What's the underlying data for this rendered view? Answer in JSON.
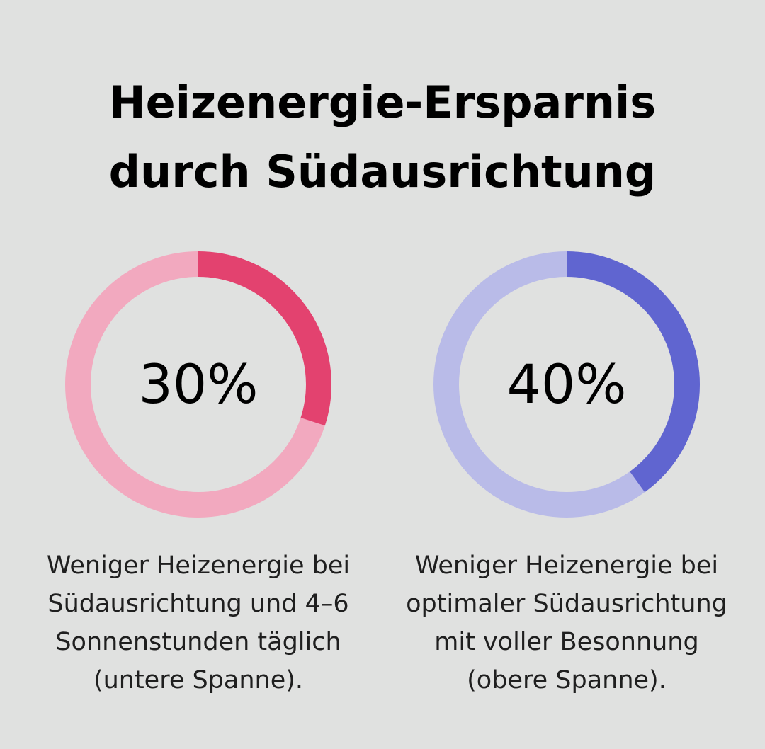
{
  "title": {
    "line1": "Heizenergie-Ersparnis",
    "line2": "durch Südausrichtung"
  },
  "chart_data": [
    {
      "type": "pie",
      "style": "donut",
      "value": 30,
      "max": 100,
      "label": "30%",
      "colors": {
        "filled": "#e3426f",
        "track": "#f2a9bf"
      },
      "caption": [
        "Weniger Heizenergie bei",
        "Südausrichtung und 4–6",
        "Sonnenstunden täglich",
        "(untere Spanne)."
      ]
    },
    {
      "type": "pie",
      "style": "donut",
      "value": 40,
      "max": 100,
      "label": "40%",
      "colors": {
        "filled": "#6065d0",
        "track": "#b9bbe8"
      },
      "caption": [
        "Weniger Heizenergie bei",
        "optimaler Südausrichtung",
        "mit voller Besonnung",
        "(obere Spanne)."
      ]
    }
  ],
  "colors": {
    "background": "#e0e1e0",
    "text": "#000000"
  }
}
